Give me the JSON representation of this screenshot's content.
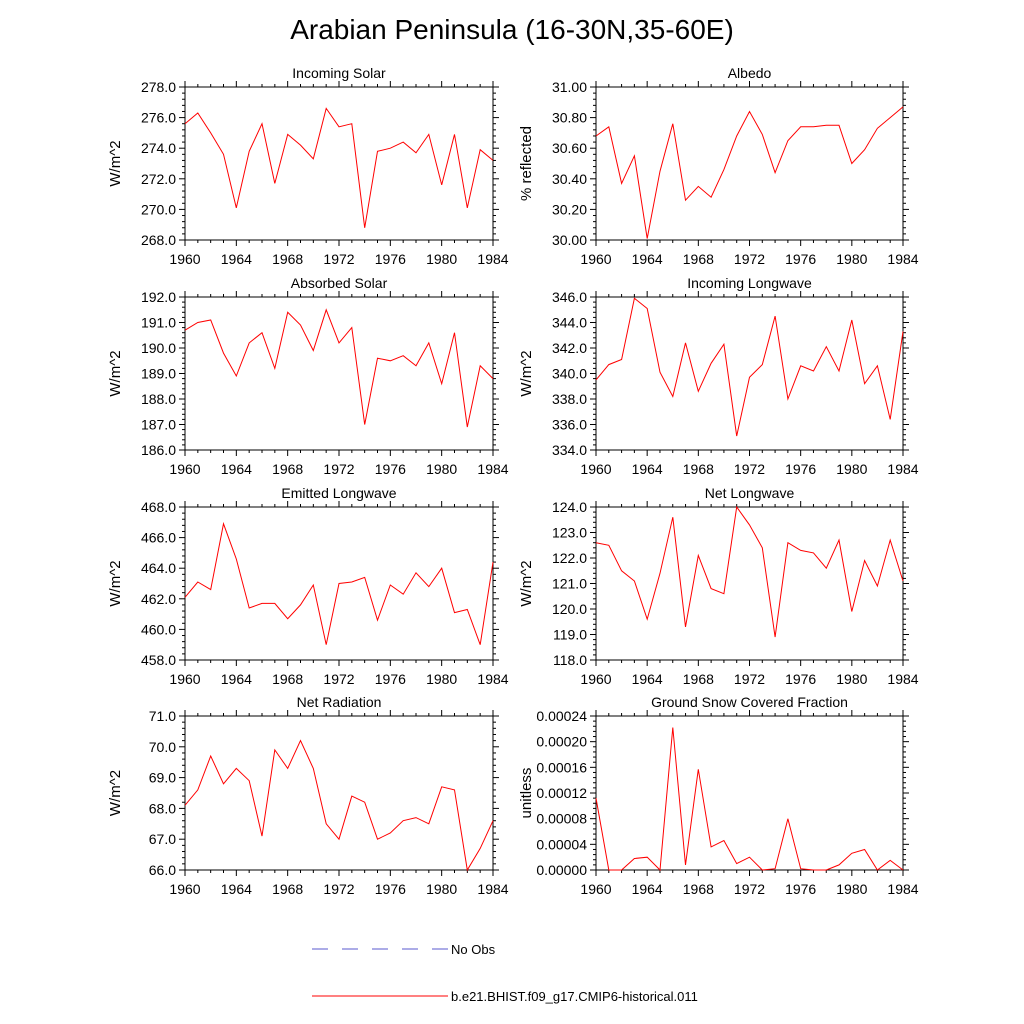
{
  "title": "Arabian Peninsula (16-30N,35-60E)",
  "colors": {
    "model": "#ff0000",
    "obs": "#5a5acf",
    "axis": "#000000"
  },
  "legend": {
    "obs_label": "No Obs",
    "model_label": "b.e21.BHIST.f09_g17.CMIP6-historical.011"
  },
  "years": [
    1960,
    1961,
    1962,
    1963,
    1964,
    1965,
    1966,
    1967,
    1968,
    1969,
    1970,
    1971,
    1972,
    1973,
    1974,
    1975,
    1976,
    1977,
    1978,
    1979,
    1980,
    1981,
    1982,
    1983,
    1984
  ],
  "chart_data": [
    {
      "type": "line",
      "title": "Incoming Solar",
      "ylabel": "W/m^2",
      "xlim": [
        1960,
        1984
      ],
      "ylim": [
        268,
        278
      ],
      "yticks": [
        268,
        270,
        272,
        274,
        276,
        278
      ],
      "yticklabels": [
        "268.0",
        "270.0",
        "272.0",
        "274.0",
        "276.0",
        "278.0"
      ],
      "xticks": [
        1960,
        1964,
        1968,
        1972,
        1976,
        1980,
        1984
      ],
      "values": [
        275.6,
        276.3,
        275.0,
        273.6,
        270.1,
        273.8,
        275.6,
        271.7,
        274.9,
        274.2,
        273.3,
        276.6,
        275.4,
        275.6,
        268.8,
        273.8,
        274.0,
        274.4,
        273.7,
        274.9,
        271.6,
        274.9,
        270.1,
        273.9,
        273.2
      ]
    },
    {
      "type": "line",
      "title": "Albedo",
      "ylabel": "% reflected",
      "xlim": [
        1960,
        1984
      ],
      "ylim": [
        30.0,
        31.0
      ],
      "yticks": [
        30.0,
        30.2,
        30.4,
        30.6,
        30.8,
        31.0
      ],
      "yticklabels": [
        "30.00",
        "30.20",
        "30.40",
        "30.60",
        "30.80",
        "31.00"
      ],
      "xticks": [
        1960,
        1964,
        1968,
        1972,
        1976,
        1980,
        1984
      ],
      "values": [
        30.68,
        30.74,
        30.37,
        30.55,
        30.01,
        30.45,
        30.76,
        30.26,
        30.35,
        30.28,
        30.46,
        30.68,
        30.84,
        30.69,
        30.44,
        30.65,
        30.74,
        30.74,
        30.75,
        30.75,
        30.5,
        30.59,
        30.73,
        30.8,
        30.87
      ]
    },
    {
      "type": "line",
      "title": "Absorbed Solar",
      "ylabel": "W/m^2",
      "xlim": [
        1960,
        1984
      ],
      "ylim": [
        186,
        192
      ],
      "yticks": [
        186,
        187,
        188,
        189,
        190,
        191,
        192
      ],
      "yticklabels": [
        "186.0",
        "187.0",
        "188.0",
        "189.0",
        "190.0",
        "191.0",
        "192.0"
      ],
      "xticks": [
        1960,
        1964,
        1968,
        1972,
        1976,
        1980,
        1984
      ],
      "values": [
        190.7,
        191.0,
        191.1,
        189.8,
        188.9,
        190.2,
        190.6,
        189.2,
        191.4,
        190.9,
        189.9,
        191.5,
        190.2,
        190.8,
        187.0,
        189.6,
        189.5,
        189.7,
        189.3,
        190.2,
        188.6,
        190.6,
        186.9,
        189.3,
        188.8
      ]
    },
    {
      "type": "line",
      "title": "Incoming Longwave",
      "ylabel": "W/m^2",
      "xlim": [
        1960,
        1984
      ],
      "ylim": [
        334,
        346
      ],
      "yticks": [
        334,
        336,
        338,
        340,
        342,
        344,
        346
      ],
      "yticklabels": [
        "334.0",
        "336.0",
        "338.0",
        "340.0",
        "342.0",
        "344.0",
        "346.0"
      ],
      "xticks": [
        1960,
        1964,
        1968,
        1972,
        1976,
        1980,
        1984
      ],
      "values": [
        339.5,
        340.7,
        341.1,
        345.9,
        345.1,
        340.1,
        338.2,
        342.4,
        338.6,
        340.8,
        342.3,
        335.1,
        339.7,
        340.7,
        344.5,
        338.0,
        340.6,
        340.2,
        342.1,
        340.2,
        344.2,
        339.2,
        340.6,
        336.4,
        343.3
      ]
    },
    {
      "type": "line",
      "title": "Emitted Longwave",
      "ylabel": "W/m^2",
      "xlim": [
        1960,
        1984
      ],
      "ylim": [
        458,
        468
      ],
      "yticks": [
        458,
        460,
        462,
        464,
        466,
        468
      ],
      "yticklabels": [
        "458.0",
        "460.0",
        "462.0",
        "464.0",
        "466.0",
        "468.0"
      ],
      "xticks": [
        1960,
        1964,
        1968,
        1972,
        1976,
        1980,
        1984
      ],
      "values": [
        462.1,
        463.1,
        462.6,
        466.9,
        464.6,
        461.4,
        461.7,
        461.7,
        460.7,
        461.6,
        462.9,
        459.0,
        463.0,
        463.1,
        463.4,
        460.6,
        462.9,
        462.3,
        463.7,
        462.8,
        464.0,
        461.1,
        461.3,
        459.0,
        464.4
      ]
    },
    {
      "type": "line",
      "title": "Net Longwave",
      "ylabel": "W/m^2",
      "xlim": [
        1960,
        1984
      ],
      "ylim": [
        118,
        124
      ],
      "yticks": [
        118,
        119,
        120,
        121,
        122,
        123,
        124
      ],
      "yticklabels": [
        "118.0",
        "119.0",
        "120.0",
        "121.0",
        "122.0",
        "123.0",
        "124.0"
      ],
      "xticks": [
        1960,
        1964,
        1968,
        1972,
        1976,
        1980,
        1984
      ],
      "values": [
        122.6,
        122.5,
        121.5,
        121.1,
        119.6,
        121.4,
        123.6,
        119.3,
        122.1,
        120.8,
        120.6,
        124.0,
        123.3,
        122.4,
        118.9,
        122.6,
        122.3,
        122.2,
        121.6,
        122.7,
        119.9,
        121.9,
        120.9,
        122.7,
        121.1
      ]
    },
    {
      "type": "line",
      "title": "Net Radiation",
      "ylabel": "W/m^2",
      "xlim": [
        1960,
        1984
      ],
      "ylim": [
        66,
        71
      ],
      "yticks": [
        66,
        67,
        68,
        69,
        70,
        71
      ],
      "yticklabels": [
        "66.0",
        "67.0",
        "68.0",
        "69.0",
        "70.0",
        "71.0"
      ],
      "xticks": [
        1960,
        1964,
        1968,
        1972,
        1976,
        1980,
        1984
      ],
      "values": [
        68.1,
        68.6,
        69.7,
        68.8,
        69.3,
        68.9,
        67.1,
        69.9,
        69.3,
        70.2,
        69.3,
        67.5,
        67.0,
        68.4,
        68.2,
        67.0,
        67.2,
        67.6,
        67.7,
        67.5,
        68.7,
        68.6,
        66.0,
        66.7,
        67.6
      ]
    },
    {
      "type": "line",
      "title": "Ground Snow Covered Fraction",
      "ylabel": "unitless",
      "xlim": [
        1960,
        1984
      ],
      "ylim": [
        0,
        0.00024
      ],
      "yticks": [
        0,
        4e-05,
        8e-05,
        0.00012,
        0.00016,
        0.0002,
        0.00024
      ],
      "yticklabels": [
        "0.00000",
        "0.00004",
        "0.00008",
        "0.00012",
        "0.00016",
        "0.00020",
        "0.00024"
      ],
      "xticks": [
        1960,
        1964,
        1968,
        1972,
        1976,
        1980,
        1984
      ],
      "values": [
        0.000112,
        0.0,
        0.0,
        1.8e-05,
        2e-05,
        0.0,
        0.000222,
        8e-06,
        0.000157,
        3.6e-05,
        4.6e-05,
        1e-05,
        2e-05,
        0.0,
        2e-06,
        8e-05,
        2e-06,
        0.0,
        0.0,
        8e-06,
        2.6e-05,
        3.2e-05,
        0.0,
        1.5e-05,
        0.0
      ]
    }
  ]
}
